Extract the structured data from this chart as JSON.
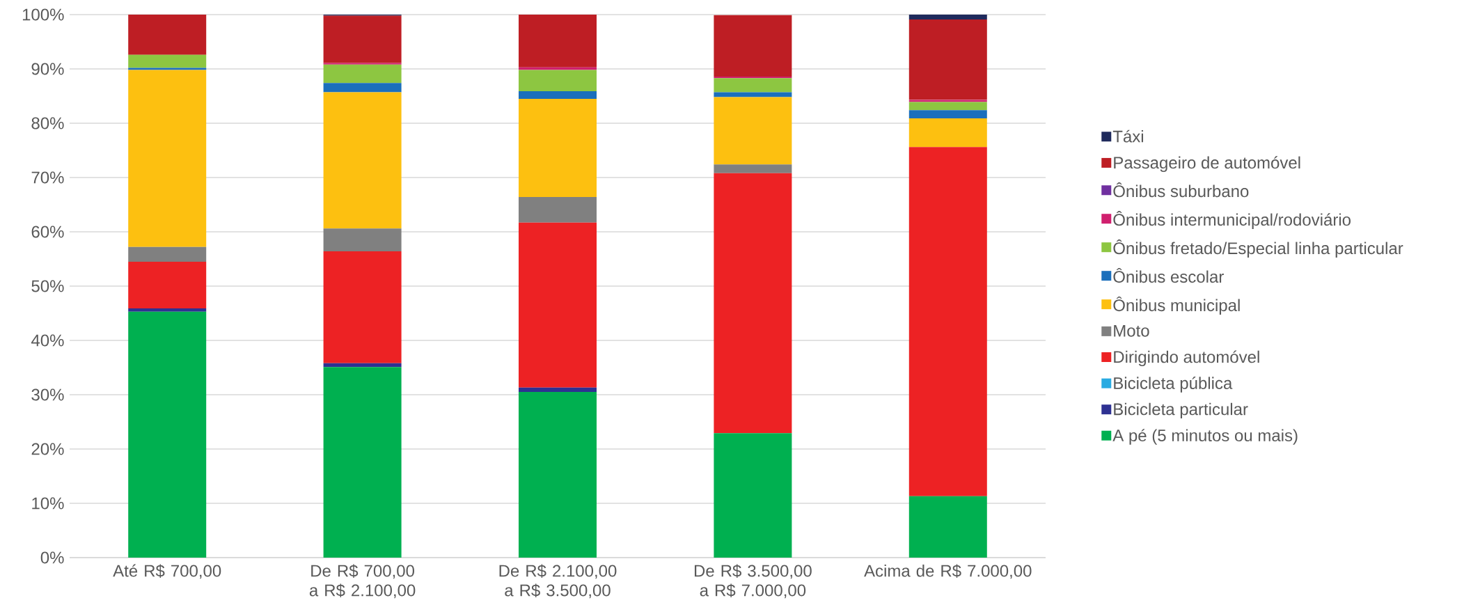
{
  "chart_data": {
    "type": "bar",
    "stacked": true,
    "grid": "y",
    "legend": "right",
    "categories": [
      "Até R$ 700,00",
      "De R$ 700,00 a R$ 2.100,00",
      "De R$ 2.100,00 a R$ 3.500,00",
      "De R$ 3.500,00 a R$ 7.000,00",
      "Acima de R$ 7.000,00"
    ],
    "ylim": [
      0,
      100
    ],
    "yticks": [
      {
        "value": 0,
        "label": "0%"
      },
      {
        "value": 10,
        "label": "10%"
      },
      {
        "value": 20,
        "label": "20%"
      },
      {
        "value": 30,
        "label": "30%"
      },
      {
        "value": 40,
        "label": "40%"
      },
      {
        "value": 50,
        "label": "50%"
      },
      {
        "value": 60,
        "label": "60%"
      },
      {
        "value": 70,
        "label": "70%"
      },
      {
        "value": 80,
        "label": "80%"
      },
      {
        "value": 90,
        "label": "90%"
      },
      {
        "value": 100,
        "label": "100%"
      }
    ],
    "series": [
      {
        "name": "A pé (5 minutos ou mais)",
        "color": "#00b050",
        "values": [
          45.3,
          35.1,
          30.5,
          22.9,
          11.3
        ]
      },
      {
        "name": "Bicicleta particular",
        "color": "#2e3192",
        "values": [
          0.6,
          0.7,
          0.8,
          null,
          0
        ]
      },
      {
        "name": "Bicicleta pública",
        "color": "#29abe2",
        "values": [
          0,
          0,
          0,
          0,
          0
        ]
      },
      {
        "name": "Dirigindo automóvel",
        "color": "#ed2224",
        "values": [
          8.6,
          20.6,
          30.4,
          47.9,
          64.3
        ]
      },
      {
        "name": "Moto",
        "color": "#808080",
        "values": [
          2.7,
          4.2,
          4.7,
          1.6,
          0
        ]
      },
      {
        "name": "Ônibus municipal",
        "color": "#fdc010",
        "values": [
          32.6,
          25.1,
          18.1,
          12.4,
          5.3
        ]
      },
      {
        "name": "Ônibus escolar",
        "color": "#1b6fbc",
        "values": [
          0.4,
          1.7,
          1.4,
          0.9,
          1.5
        ]
      },
      {
        "name": "Ônibus fretado/Especial linha particular",
        "color": "#8dc641",
        "values": [
          2.4,
          3.4,
          3.9,
          2.6,
          1.5
        ]
      },
      {
        "name": "Ônibus intermunicipal/rodoviário",
        "color": "#d01f6e",
        "values": [
          0,
          0.3,
          0.5,
          0.3,
          0.4
        ]
      },
      {
        "name": "Ônibus suburbano",
        "color": "#7030a0",
        "values": [
          0,
          0,
          0,
          0,
          0
        ]
      },
      {
        "name": "Passageiro de automóvel",
        "color": "#be1e24",
        "values": [
          7.4,
          8.7,
          9.7,
          11.3,
          14.8
        ]
      },
      {
        "name": "Táxi",
        "color": "#1f2a5c",
        "values": [
          0,
          0.2,
          0,
          0,
          0.9
        ]
      }
    ]
  }
}
